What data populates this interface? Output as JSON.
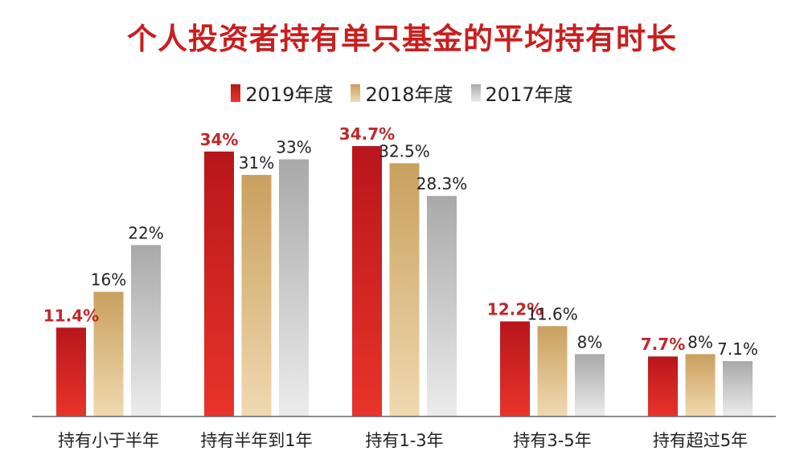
{
  "chart_data": {
    "type": "bar",
    "title": "个人投资者持有单只基金的平均持有时长",
    "categories": [
      "持有小于半年",
      "持有半年到1年",
      "持有1-3年",
      "持有3-5年",
      "持有超过5年"
    ],
    "series": [
      {
        "name": "2019年度",
        "values": [
          11.4,
          34,
          34.7,
          12.2,
          7.7
        ],
        "labels": [
          "11.4%",
          "34%",
          "34.7%",
          "12.2%",
          "7.7%"
        ],
        "color_top": "#b8161b",
        "color_bottom": "#e8342a"
      },
      {
        "name": "2018年度",
        "values": [
          16,
          31,
          32.5,
          11.6,
          8
        ],
        "labels": [
          "16%",
          "31%",
          "32.5%",
          "11.6%",
          "8%"
        ],
        "color_top": "#c9a05e",
        "color_bottom": "#f0d9b0"
      },
      {
        "name": "2017年度",
        "values": [
          22,
          33,
          28.3,
          8,
          7.1
        ],
        "labels": [
          "22%",
          "33%",
          "28.3%",
          "8%",
          "7.1%"
        ],
        "color_top": "#a9a9a9",
        "color_bottom": "#ececec"
      }
    ],
    "ylim": [
      0,
      38
    ],
    "grid": false,
    "legend_position": "top-center",
    "highlight_label_color": "#c0282a",
    "label_color": "#222222"
  }
}
